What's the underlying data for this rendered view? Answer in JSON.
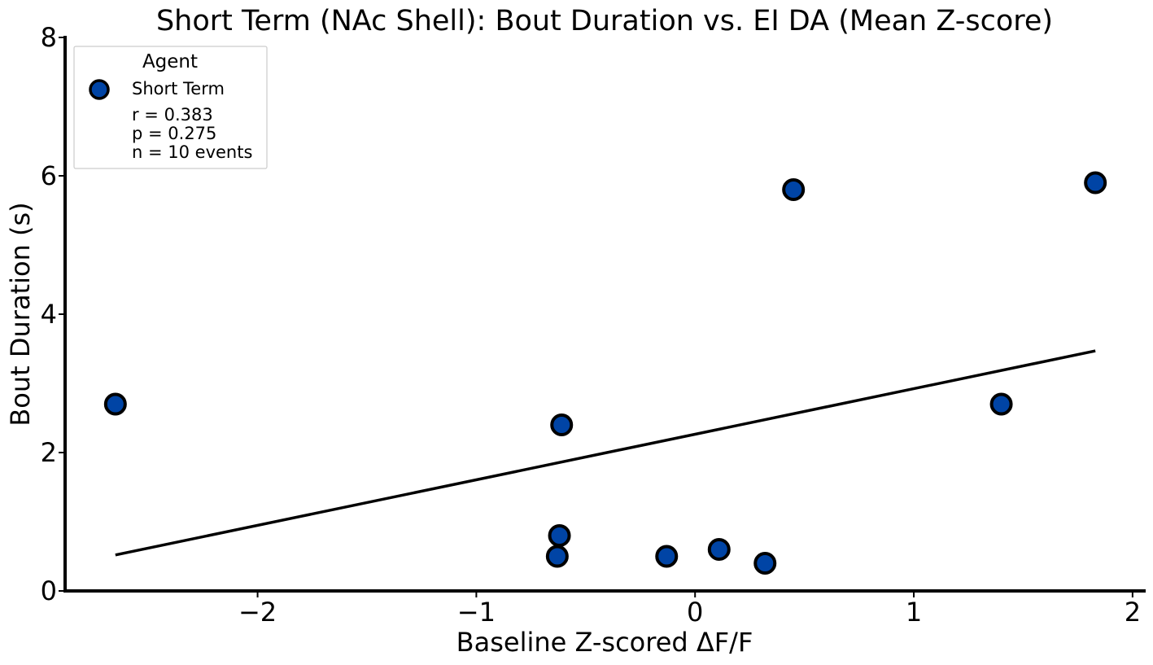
{
  "chart_data": {
    "type": "scatter",
    "title": "Short Term (NAc Shell): Bout Duration vs. EI DA (Mean Z-score)",
    "xlabel": "Baseline Z-scored ΔF/F",
    "ylabel": "Bout Duration (s)",
    "xlim": [
      -2.88,
      2.06
    ],
    "ylim": [
      0,
      8
    ],
    "xticks": [
      -2,
      -1,
      0,
      1,
      2
    ],
    "xtick_labels": [
      "−2",
      "−1",
      "0",
      "1",
      "2"
    ],
    "yticks": [
      0,
      2,
      4,
      6,
      8
    ],
    "ytick_labels": [
      "0",
      "2",
      "4",
      "6",
      "8"
    ],
    "grid": false,
    "legend": {
      "placement": "top-left",
      "title": "Agent",
      "entries": [
        "Short Term"
      ],
      "stats": [
        "r = 0.383",
        "p = 0.275",
        "n = 10 events"
      ]
    },
    "series": [
      {
        "name": "Short Term",
        "color": "#0044a5",
        "edge_color": "#000000",
        "points": [
          {
            "x": -2.65,
            "y": 2.7
          },
          {
            "x": -0.61,
            "y": 2.4
          },
          {
            "x": -0.62,
            "y": 0.8
          },
          {
            "x": -0.63,
            "y": 0.5
          },
          {
            "x": -0.13,
            "y": 0.5
          },
          {
            "x": 0.11,
            "y": 0.6
          },
          {
            "x": 0.32,
            "y": 0.4
          },
          {
            "x": 0.45,
            "y": 5.8
          },
          {
            "x": 1.4,
            "y": 2.7
          },
          {
            "x": 1.83,
            "y": 5.9
          }
        ]
      }
    ],
    "fit_line": {
      "color": "#000000",
      "points": [
        {
          "x": -2.65,
          "y": 0.52
        },
        {
          "x": 1.83,
          "y": 3.47
        }
      ]
    }
  }
}
